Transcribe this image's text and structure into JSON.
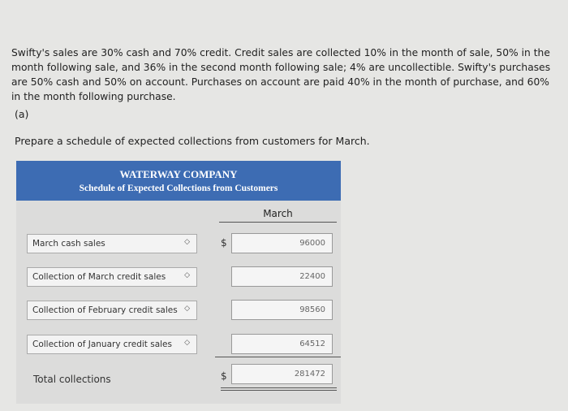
{
  "problem": {
    "text": "Swifty's sales are 30% cash and 70% credit. Credit sales are collected 10% in the month of sale, 50% in the month following sale, and 36% in the second month following sale; 4% are uncollectible. Swifty's purchases are 50% cash and 50% on account. Purchases on account are paid 40% in the month of purchase, and 60% in the month following purchase.",
    "part": "(a)",
    "prompt": "Prepare a schedule of expected collections from customers for March."
  },
  "table": {
    "company": "WATERWAY COMPANY",
    "subtitle": "Schedule of Expected Collections from Customers",
    "column": "March",
    "rows": [
      {
        "label": "March cash sales",
        "currency": "$",
        "value": 96000
      },
      {
        "label": "Collection of March credit sales",
        "value": 22400
      },
      {
        "label": "Collection of February credit sales",
        "value": 98560
      },
      {
        "label": "Collection of January credit sales",
        "value": 64512
      }
    ],
    "total": {
      "label": "Total collections",
      "currency": "$",
      "value": 281472
    }
  }
}
